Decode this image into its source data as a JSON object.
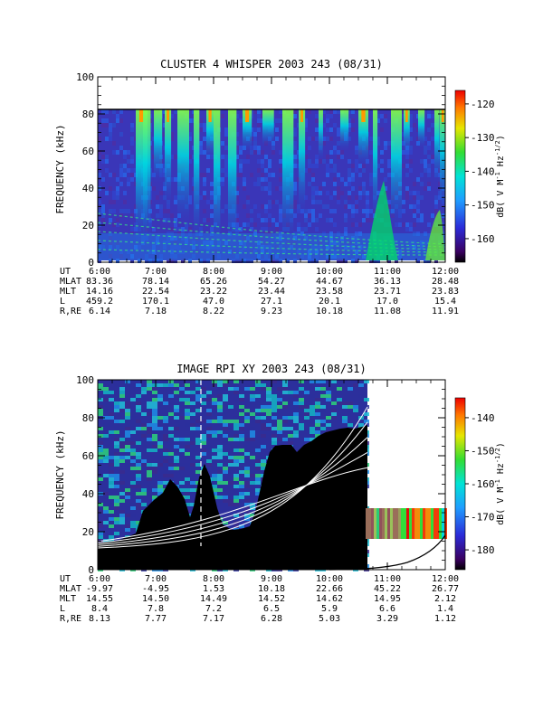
{
  "chart_data": [
    {
      "type": "heatmap",
      "title": "CLUSTER 4 WHISPER 2003 243 (08/31)",
      "ylabel": "FREQUENCY (kHz)",
      "ylim": [
        0,
        100
      ],
      "yticks": [
        "0",
        "20",
        "40",
        "60",
        "80",
        "100"
      ],
      "xticks": [
        "6:00",
        "7:00",
        "8:00",
        "9:00",
        "10:00",
        "11:00",
        "12:00"
      ],
      "colorbar": {
        "label": "dB( V M",
        "label_sup1": "-1",
        "label_mid": " Hz",
        "label_sup2": "-1/2",
        "label_end": ")",
        "range": [
          -167,
          -116
        ],
        "ticks": [
          "-120",
          "-130",
          "-140",
          "-150",
          "-160"
        ]
      },
      "data_upper_limit_khz": 80,
      "ephemeris": [
        {
          "name": "UT",
          "values": [
            "6:00",
            "7:00",
            "8:00",
            "9:00",
            "10:00",
            "11:00",
            "12:00"
          ]
        },
        {
          "name": "MLAT",
          "values": [
            "83.36",
            "78.14",
            "65.26",
            "54.27",
            "44.67",
            "36.13",
            "28.48"
          ]
        },
        {
          "name": "MLT",
          "values": [
            "14.16",
            "22.54",
            "23.22",
            "23.44",
            "23.58",
            "23.71",
            "23.83"
          ]
        },
        {
          "name": "L",
          "values": [
            "459.2",
            "170.1",
            "47.0",
            "27.1",
            "20.1",
            "17.0",
            "15.4"
          ]
        },
        {
          "name": "R,RE",
          "values": [
            "6.14",
            "7.18",
            "8.22",
            "9.23",
            "10.18",
            "11.08",
            "11.91"
          ]
        }
      ]
    },
    {
      "type": "heatmap",
      "title": "IMAGE RPI XY 2003 243 (08/31)",
      "ylabel": "FREQUENCY (kHz)",
      "ylim": [
        0,
        100
      ],
      "yticks": [
        "0",
        "20",
        "40",
        "60",
        "80",
        "100"
      ],
      "xticks": [
        "6:00",
        "7:00",
        "8:00",
        "9:00",
        "10:00",
        "11:00",
        "12:00"
      ],
      "colorbar": {
        "label": "dB( V M",
        "label_sup1": "-1",
        "label_mid": " Hz",
        "label_sup2": "-1/2",
        "label_end": ")",
        "range": [
          -186,
          -134
        ],
        "ticks": [
          "-140",
          "-150",
          "-160",
          "-170",
          "-180"
        ]
      },
      "ephemeris": [
        {
          "name": "UT",
          "values": [
            "6:00",
            "7:00",
            "8:00",
            "9:00",
            "10:00",
            "11:00",
            "12:00"
          ]
        },
        {
          "name": "MLAT",
          "values": [
            "-9.97",
            "-4.95",
            "1.53",
            "10.18",
            "22.66",
            "45.22",
            "26.77"
          ]
        },
        {
          "name": "MLT",
          "values": [
            "14.55",
            "14.50",
            "14.49",
            "14.52",
            "14.62",
            "14.95",
            "2.12"
          ]
        },
        {
          "name": "L",
          "values": [
            "8.4",
            "7.8",
            "7.2",
            "6.5",
            "5.9",
            "6.6",
            "1.4"
          ]
        },
        {
          "name": "R,RE",
          "values": [
            "8.13",
            "7.77",
            "7.17",
            "6.28",
            "5.03",
            "3.29",
            "1.12"
          ]
        }
      ]
    }
  ]
}
